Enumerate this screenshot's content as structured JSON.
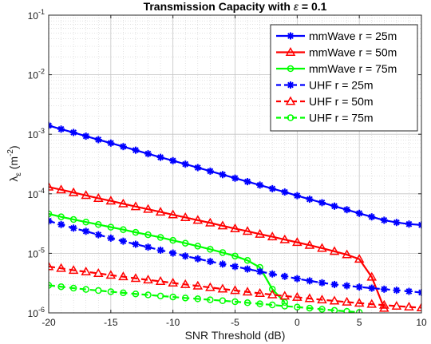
{
  "chart_data": {
    "type": "line",
    "title_main": "Transmission Capacity with ",
    "title_symbol": "ε",
    "title_tail": " = 0.1",
    "xlabel": "SNR Threshold (dB)",
    "ylabel_main": "λ",
    "ylabel_sub": "ε",
    "ylabel_unit_open": " (m",
    "ylabel_unit_sup": "-2",
    "ylabel_unit_close": ")",
    "xlim": [
      -20,
      10
    ],
    "ylim": [
      1e-06,
      0.1
    ],
    "yscale": "log",
    "grid": true,
    "minor_grid": true,
    "legend_position": "top-right",
    "x_ticks": [
      "-20",
      "-15",
      "-10",
      "-5",
      "0",
      "5",
      "10"
    ],
    "y_ticks": [
      {
        "base": "10",
        "exp": "-6"
      },
      {
        "base": "10",
        "exp": "-5"
      },
      {
        "base": "10",
        "exp": "-4"
      },
      {
        "base": "10",
        "exp": "-3"
      },
      {
        "base": "10",
        "exp": "-2"
      },
      {
        "base": "10",
        "exp": "-1"
      }
    ],
    "x": [
      -20,
      -19,
      -18,
      -17,
      -16,
      -15,
      -14,
      -13,
      -12,
      -11,
      -10,
      -9,
      -8,
      -7,
      -6,
      -5,
      -4,
      -3,
      -2,
      -1,
      0,
      1,
      2,
      3,
      4,
      5,
      6,
      7,
      8,
      9,
      10
    ],
    "series": [
      {
        "name": "mmWave r = 25m",
        "color": "#0000ff",
        "dash": "solid",
        "marker": "asterisk",
        "values": [
          0.0014,
          0.00122,
          0.00107,
          0.00093,
          0.00081,
          0.00071,
          0.00062,
          0.00054,
          0.00047,
          0.00041,
          0.00036,
          0.000315,
          0.000275,
          0.00024,
          0.00021,
          0.000183,
          0.00016,
          0.00014,
          0.000122,
          0.000107,
          9.3e-05,
          8.1e-05,
          7.1e-05,
          6.2e-05,
          5.4e-05,
          4.7e-05,
          4.1e-05,
          3.6e-05,
          3.3e-05,
          3.1e-05,
          3e-05
        ]
      },
      {
        "name": "mmWave r = 50m",
        "color": "#ff0000",
        "dash": "solid",
        "marker": "triangle",
        "values": [
          0.00013,
          0.000117,
          0.000105,
          9.4e-05,
          8.4e-05,
          7.6e-05,
          6.8e-05,
          6.1e-05,
          5.5e-05,
          4.95e-05,
          4.45e-05,
          4e-05,
          3.6e-05,
          3.25e-05,
          2.9e-05,
          2.6e-05,
          2.35e-05,
          2.1e-05,
          1.9e-05,
          1.7e-05,
          1.53e-05,
          1.37e-05,
          1.22e-05,
          1.08e-05,
          9.5e-06,
          8e-06,
          4e-06,
          1.2e-06,
          null,
          null,
          null
        ]
      },
      {
        "name": "mmWave r = 75m",
        "color": "#00ff00",
        "dash": "solid",
        "marker": "circle",
        "values": [
          4.6e-05,
          4.1e-05,
          3.7e-05,
          3.35e-05,
          3.05e-05,
          2.75e-05,
          2.5e-05,
          2.25e-05,
          2.05e-05,
          1.85e-05,
          1.65e-05,
          1.48e-05,
          1.32e-05,
          1.17e-05,
          1.03e-05,
          9e-06,
          7.6e-06,
          5.8e-06,
          2.5e-06,
          1.5e-06,
          null,
          null,
          null,
          null,
          null,
          null,
          null,
          null,
          null,
          null,
          null
        ]
      },
      {
        "name": "UHF r = 25m",
        "color": "#0000ff",
        "dash": "dashed",
        "marker": "asterisk",
        "values": [
          3.5e-05,
          3.05e-05,
          2.65e-05,
          2.35e-05,
          2.05e-05,
          1.8e-05,
          1.6e-05,
          1.42e-05,
          1.27e-05,
          1.13e-05,
          1.01e-05,
          9e-06,
          8.1e-06,
          7.3e-06,
          6.6e-06,
          6e-06,
          5.45e-06,
          4.95e-06,
          4.5e-06,
          4.1e-06,
          3.75e-06,
          3.45e-06,
          3.2e-06,
          3e-06,
          2.85e-06,
          2.72e-06,
          2.6e-06,
          2.5e-06,
          2.4e-06,
          2.3e-06,
          2.2e-06
        ]
      },
      {
        "name": "UHF r = 50m",
        "color": "#ff0000",
        "dash": "dashed",
        "marker": "triangle",
        "values": [
          6e-06,
          5.6e-06,
          5.2e-06,
          4.9e-06,
          4.6e-06,
          4.3e-06,
          4.05e-06,
          3.8e-06,
          3.58e-06,
          3.38e-06,
          3.18e-06,
          3e-06,
          2.83e-06,
          2.67e-06,
          2.52e-06,
          2.38e-06,
          2.25e-06,
          2.13e-06,
          2.02e-06,
          1.92e-06,
          1.83e-06,
          1.74e-06,
          1.66e-06,
          1.59e-06,
          1.52e-06,
          1.46e-06,
          1.4e-06,
          1.35e-06,
          1.3e-06,
          1.26e-06,
          1.22e-06
        ]
      },
      {
        "name": "UHF r = 75m",
        "color": "#00ff00",
        "dash": "dashed",
        "marker": "circle",
        "values": [
          2.9e-06,
          2.75e-06,
          2.6e-06,
          2.48e-06,
          2.37e-06,
          2.27e-06,
          2.17e-06,
          2.08e-06,
          2e-06,
          1.92e-06,
          1.85e-06,
          1.78e-06,
          1.72e-06,
          1.66e-06,
          1.6e-06,
          1.54e-06,
          1.48e-06,
          1.42e-06,
          1.36e-06,
          1.3e-06,
          1.25e-06,
          1.2e-06,
          1.15e-06,
          1.1e-06,
          1.06e-06,
          1.02e-06,
          null,
          null,
          null,
          null,
          null
        ]
      }
    ]
  }
}
